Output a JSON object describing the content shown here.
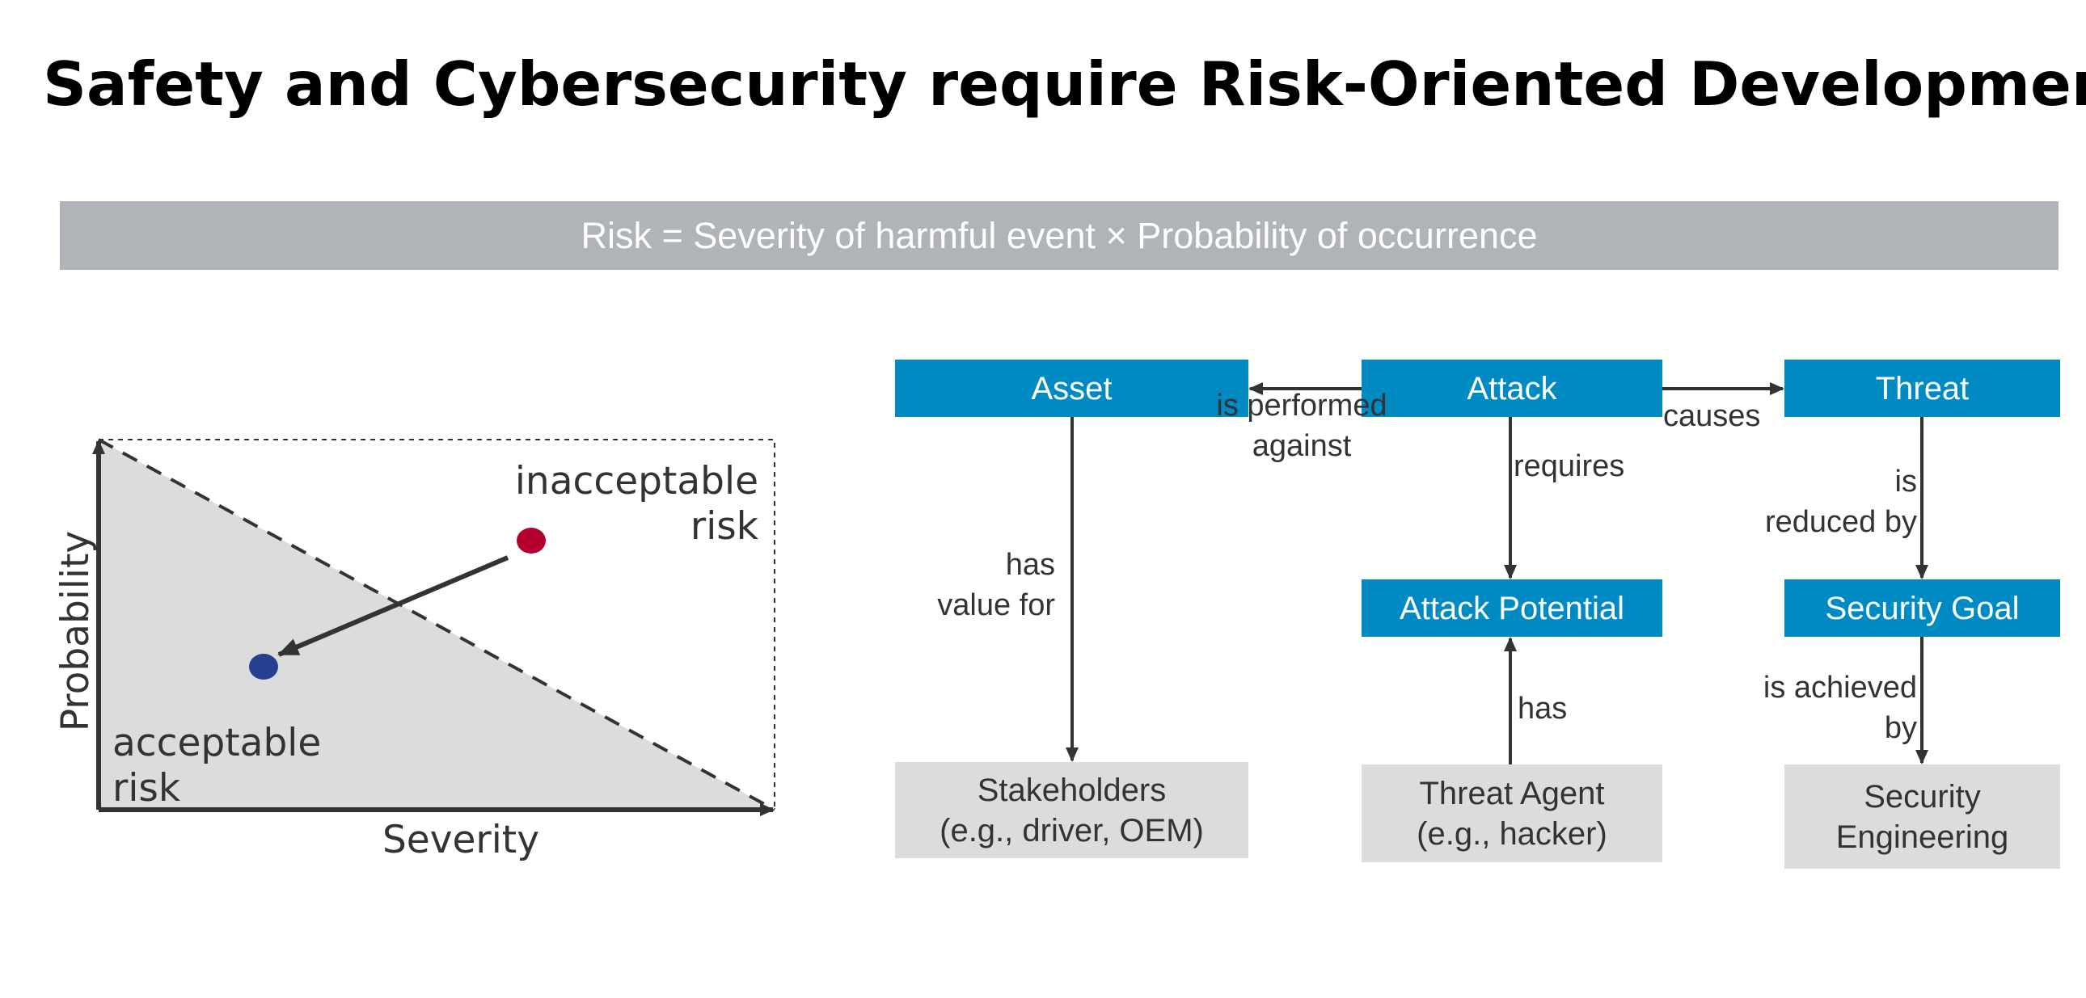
{
  "title": "Safety and Cybersecurity require Risk-Oriented Development",
  "banner": {
    "text": "Risk = Severity of harmful event × Probability of occurrence",
    "color": "#b0b4b8"
  },
  "colors": {
    "blue_box": "#008ac3",
    "grey_box": "#dcdcdc",
    "arrow": "#333333",
    "triangle_fill": "#dcdcdc",
    "red_dot": "#b5002f",
    "blue_dot": "#24408e"
  },
  "risk_chart": {
    "x_axis_label": "Severity",
    "y_axis_label": "Probability",
    "upper_region_label": "inacceptable\nrisk",
    "lower_region_label": "acceptable\nrisk"
  },
  "nodes": {
    "asset": "Asset",
    "attack": "Attack",
    "threat": "Threat",
    "attack_potential": "Attack Potential",
    "security_goal": "Security Goal",
    "stakeholders": "Stakeholders\n(e.g., driver, OEM)",
    "threat_agent": "Threat Agent\n(e.g., hacker)",
    "security_engineering": "Security\nEngineering"
  },
  "edges": {
    "attack_to_asset": "is performed\nagainst",
    "attack_to_threat": "causes",
    "attack_to_attack_potential": "requires",
    "threat_to_security_goal": "is\nreduced by",
    "asset_to_stakeholders": "has\nvalue for",
    "threat_agent_to_attack_potential": "has",
    "security_goal_to_security_engineering": "is achieved\nby"
  }
}
